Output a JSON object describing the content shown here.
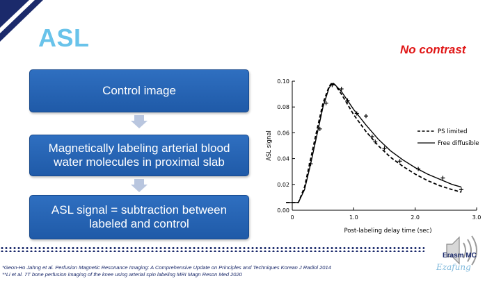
{
  "slide": {
    "title": "ASL",
    "tag": "No contrast"
  },
  "flow": {
    "steps": [
      "Control image",
      "Magnetically labeling arterial blood water molecules in proximal slab",
      "ASL signal = subtraction between labeled and control"
    ]
  },
  "references": [
    "*Geon-Ho Jahng et al. Perfusion Magnetic Resonance Imaging: A Comprehensive Update on Principles and Techniques Korean J Radiol 2014",
    "**Li et al. 7T bone perfusion imaging of the knee using arterial spin labeling MRI Magn Reson Med 2020"
  ],
  "logo": {
    "text": "Erasm  MC",
    "script": "Ezafung"
  },
  "colors": {
    "title": "#69c3ea",
    "tag": "#e01616",
    "box": "#2f6fc0",
    "navy": "#1b2a6b"
  },
  "icons": [
    "speaker-icon"
  ],
  "chart_data": {
    "type": "line",
    "title": "",
    "xlabel": "Post-labeling delay time (sec)",
    "ylabel": "ASL signal",
    "xlim": [
      0,
      3.0
    ],
    "ylim": [
      0,
      0.1
    ],
    "xticks": [
      "0",
      "1.0",
      "2.0",
      "3.0"
    ],
    "yticks": [
      "0.00",
      "0.02",
      "0.04",
      "0.06",
      "0.08",
      "0.10"
    ],
    "legend": "right",
    "series": [
      {
        "name": "PS limited",
        "style": "dashed",
        "x": [
          -0.1,
          0.1,
          0.2,
          0.3,
          0.4,
          0.5,
          0.6,
          0.65,
          0.7,
          0.8,
          0.9,
          1.0,
          1.2,
          1.4,
          1.6,
          1.8,
          2.0,
          2.2,
          2.4,
          2.6,
          2.75
        ],
        "y": [
          0.006,
          0.006,
          0.018,
          0.04,
          0.062,
          0.083,
          0.096,
          0.099,
          0.097,
          0.09,
          0.082,
          0.074,
          0.061,
          0.05,
          0.041,
          0.034,
          0.028,
          0.023,
          0.019,
          0.016,
          0.014
        ]
      },
      {
        "name": "Free diffusible",
        "style": "solid",
        "x": [
          -0.1,
          0.1,
          0.2,
          0.3,
          0.4,
          0.5,
          0.6,
          0.65,
          0.7,
          0.8,
          0.9,
          1.0,
          1.2,
          1.4,
          1.6,
          1.8,
          2.0,
          2.2,
          2.4,
          2.6,
          2.75
        ],
        "y": [
          0.006,
          0.006,
          0.016,
          0.036,
          0.058,
          0.08,
          0.095,
          0.098,
          0.097,
          0.092,
          0.085,
          0.078,
          0.066,
          0.055,
          0.046,
          0.039,
          0.033,
          0.028,
          0.024,
          0.02,
          0.018
        ]
      },
      {
        "name": "",
        "style": "marker",
        "x": [
          0.3,
          0.45,
          0.55,
          0.65,
          0.8,
          0.9,
          1.05,
          1.2,
          1.3,
          1.35,
          1.5,
          1.75,
          2.05,
          2.45,
          2.75
        ],
        "y": [
          0.036,
          0.063,
          0.083,
          0.097,
          0.094,
          0.085,
          0.075,
          0.073,
          0.057,
          0.053,
          0.048,
          0.038,
          0.032,
          0.025,
          0.016
        ]
      }
    ]
  }
}
